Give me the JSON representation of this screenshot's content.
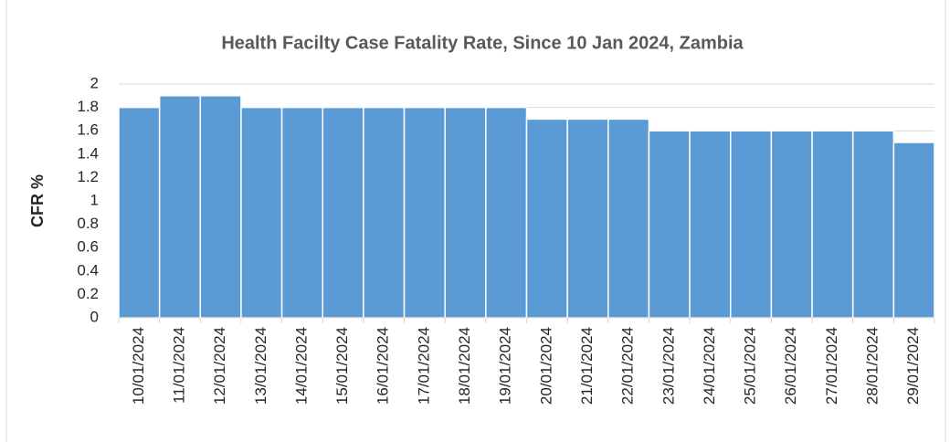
{
  "chart_data": {
    "type": "bar",
    "title": "Health Facilty Case Fatality Rate, Since 10 Jan 2024, Zambia",
    "y_label": "CFR %",
    "categories": [
      "10/01/2024",
      "11/01/2024",
      "12/01/2024",
      "13/01/2024",
      "14/01/2024",
      "15/01/2024",
      "16/01/2024",
      "17/01/2024",
      "18/01/2024",
      "19/01/2024",
      "20/01/2024",
      "21/01/2024",
      "22/01/2024",
      "23/01/2024",
      "24/01/2024",
      "25/01/2024",
      "26/01/2024",
      "27/01/2024",
      "28/01/2024",
      "29/01/2024"
    ],
    "values": [
      1.8,
      1.9,
      1.9,
      1.8,
      1.8,
      1.8,
      1.8,
      1.8,
      1.8,
      1.8,
      1.7,
      1.7,
      1.7,
      1.6,
      1.6,
      1.6,
      1.6,
      1.6,
      1.6,
      1.5
    ],
    "color": "#5b9bd5",
    "ylim": [
      0,
      2
    ],
    "yticks": [
      0,
      0.2,
      0.4,
      0.6,
      0.8,
      1,
      1.2,
      1.4,
      1.6,
      1.8,
      2
    ],
    "grid": true
  }
}
